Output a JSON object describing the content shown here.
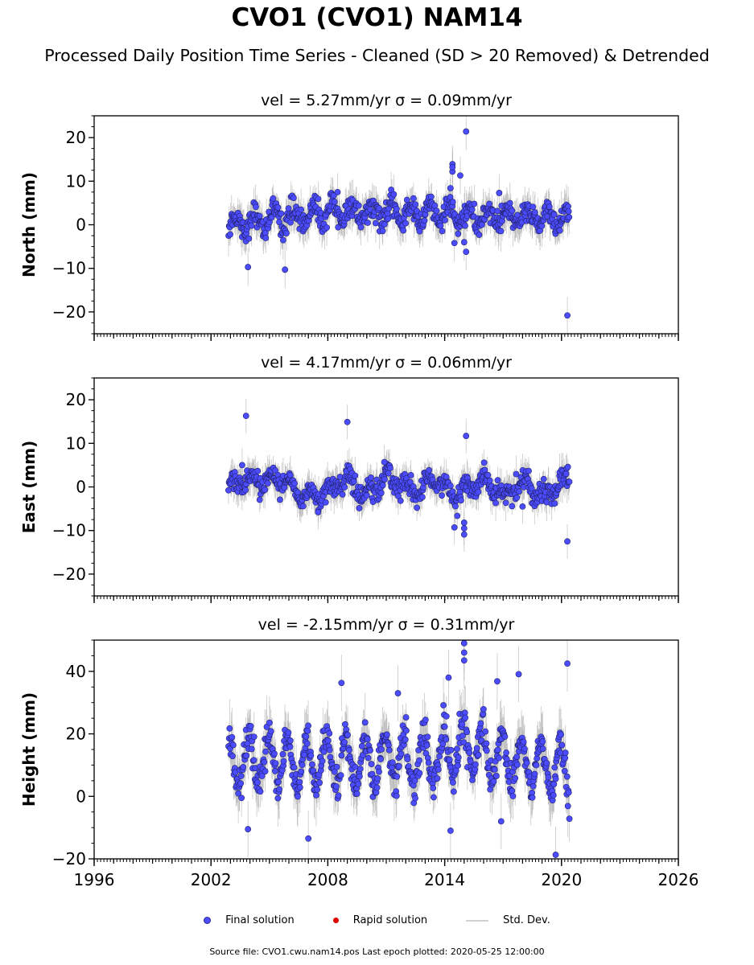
{
  "chart_data": {
    "type": "scatter",
    "title": "CVO1 (CVO1) NAM14",
    "subtitle": "Processed Daily Position Time Series - Cleaned (SD > 20 Removed) & Detrended",
    "x_ticks": [
      "1996",
      "2002",
      "2008",
      "2014",
      "2020",
      "2026"
    ],
    "xlim": [
      1996,
      2026
    ],
    "data_span": [
      2002.9,
      2020.4
    ],
    "grid": false,
    "legend_position": "bottom-center",
    "panels": [
      {
        "ylabel": "North (mm)",
        "panel_title": "vel = 5.27mm/yr   σ = 0.09mm/yr",
        "ylim": [
          -25,
          25
        ],
        "y_ticks": [
          -20,
          -10,
          0,
          10,
          20
        ],
        "y_tick_labels": [
          "−20",
          "−10",
          "0",
          "10",
          "20"
        ],
        "baseline": [
          [
            2002.9,
            0.0
          ],
          [
            2004.5,
            1.0
          ],
          [
            2006.5,
            2.0
          ],
          [
            2008.5,
            3.0
          ],
          [
            2011,
            2.5
          ],
          [
            2014,
            2.5
          ],
          [
            2016,
            1.5
          ],
          [
            2018.5,
            1.8
          ],
          [
            2020.4,
            1.5
          ]
        ],
        "spread": 2.0,
        "noise_sd": 2.4,
        "outliers": [
          [
            2003.9,
            -9.7
          ],
          [
            2005.8,
            -10.3
          ],
          [
            2014.4,
            12.2
          ],
          [
            2014.4,
            13.9
          ],
          [
            2014.4,
            13.2
          ],
          [
            2014.8,
            11.3
          ],
          [
            2015.1,
            21.4
          ],
          [
            2014.3,
            8.4
          ],
          [
            2016.8,
            7.3
          ],
          [
            2015.1,
            -6.2
          ],
          [
            2020.3,
            -20.8
          ],
          [
            2015.0,
            -4.0
          ],
          [
            2014.5,
            -4.2
          ],
          [
            2008.5,
            7.5
          ]
        ]
      },
      {
        "ylabel": "East (mm)",
        "panel_title": "vel = 4.17mm/yr   σ = 0.06mm/yr",
        "ylim": [
          -25,
          25
        ],
        "y_ticks": [
          -20,
          -10,
          0,
          10,
          20
        ],
        "y_tick_labels": [
          "−20",
          "−10",
          "0",
          "10",
          "20"
        ],
        "baseline": [
          [
            2002.9,
            0.5
          ],
          [
            2004,
            1.5
          ],
          [
            2005.5,
            2.0
          ],
          [
            2006.5,
            -2.0
          ],
          [
            2008,
            -1.0
          ],
          [
            2009,
            2.0
          ],
          [
            2010,
            -2.0
          ],
          [
            2011,
            2.5
          ],
          [
            2012.5,
            -1.5
          ],
          [
            2013.5,
            1.5
          ],
          [
            2014.5,
            -1.5
          ],
          [
            2016,
            1.5
          ],
          [
            2017,
            -2.5
          ],
          [
            2018,
            1.5
          ],
          [
            2019,
            -2.0
          ],
          [
            2020.4,
            2.0
          ]
        ],
        "spread": 1.5,
        "noise_sd": 2.2,
        "outliers": [
          [
            2003.8,
            16.3
          ],
          [
            2003.6,
            5.0
          ],
          [
            2009.0,
            14.9
          ],
          [
            2015.1,
            11.7
          ],
          [
            2014.5,
            -9.3
          ],
          [
            2015.0,
            -9.5
          ],
          [
            2015.0,
            -10.9
          ],
          [
            2015.0,
            -8.2
          ],
          [
            2020.3,
            -12.5
          ],
          [
            2007.5,
            -5.8
          ],
          [
            2010.9,
            5.7
          ],
          [
            2018.0,
            -4.5
          ]
        ]
      },
      {
        "ylabel": "Height (mm)",
        "panel_title": "vel = -2.15mm/yr   σ = 0.31mm/yr",
        "ylim": [
          -20,
          50
        ],
        "y_ticks": [
          -20,
          0,
          20,
          40
        ],
        "y_tick_labels": [
          "−20",
          "0",
          "20",
          "40"
        ],
        "baseline": [
          [
            2002.9,
            10.0
          ],
          [
            2005,
            12.0
          ],
          [
            2008,
            10.0
          ],
          [
            2011,
            12.0
          ],
          [
            2013,
            11.0
          ],
          [
            2015,
            16.0
          ],
          [
            2017,
            12.0
          ],
          [
            2018.5,
            10.0
          ],
          [
            2020.4,
            8.0
          ]
        ],
        "spread": 8.0,
        "noise_sd": 5.0,
        "outliers": [
          [
            2015.0,
            49.0
          ],
          [
            2015.0,
            43.5
          ],
          [
            2015.0,
            46.0
          ],
          [
            2020.3,
            42.5
          ],
          [
            2017.8,
            39.1
          ],
          [
            2016.7,
            36.8
          ],
          [
            2014.2,
            38.0
          ],
          [
            2008.7,
            36.3
          ],
          [
            2019.7,
            -18.7
          ],
          [
            2007.0,
            -13.5
          ],
          [
            2003.9,
            -10.5
          ],
          [
            2014.3,
            -11.0
          ],
          [
            2016.9,
            -8.0
          ],
          [
            2011.6,
            33.0
          ]
        ]
      }
    ],
    "legend": [
      {
        "label": "Final solution",
        "color": "#4b4bff",
        "marker": "circle"
      },
      {
        "label": "Rapid solution",
        "color": "#e00000",
        "marker": "circle"
      },
      {
        "label": "Std. Dev.",
        "color": "#d0d0d0",
        "marker": "line"
      }
    ],
    "footer": "Source file: CVO1.cwu.nam14.pos  Last epoch plotted: 2020-05-25 12:00:00"
  }
}
